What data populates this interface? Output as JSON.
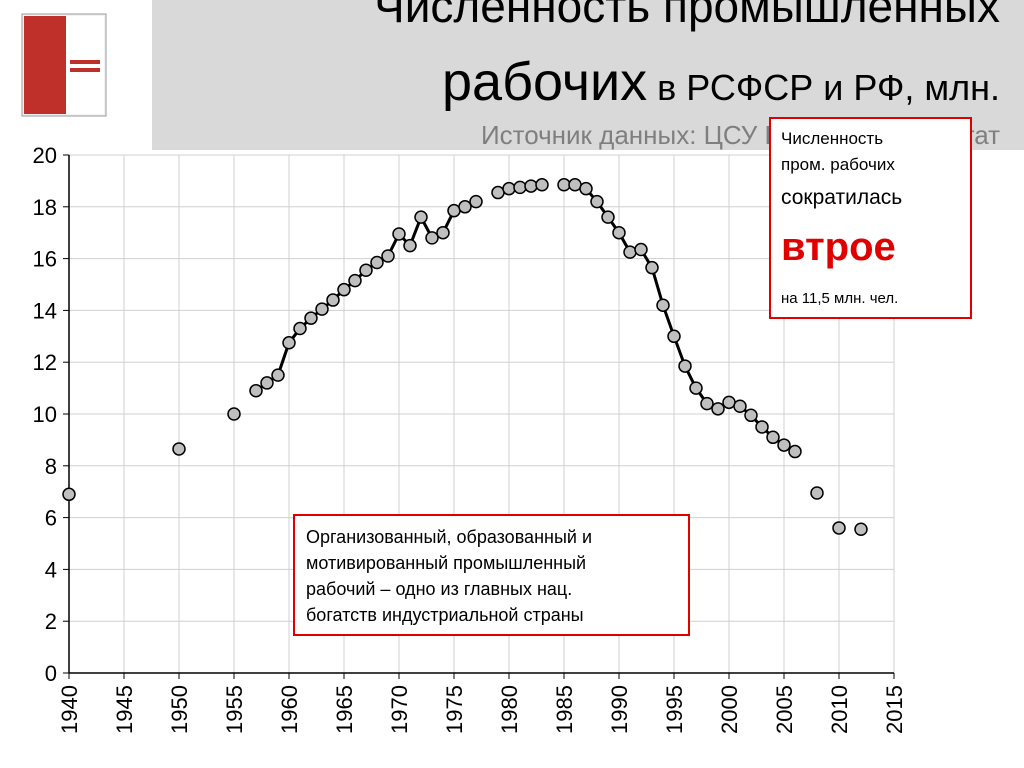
{
  "header": {
    "title_line1": "Численность промышленных",
    "title_big": "рабочих",
    "title_rest": " в РСФСР и РФ, млн.",
    "source": "Источник данных: ЦСУ РСФСР, Госкомстат"
  },
  "chart_data": {
    "type": "line",
    "x": [
      1940,
      1945,
      1950,
      1952,
      1955,
      1956,
      1957,
      1958,
      1959,
      1960,
      1961,
      1962,
      1963,
      1964,
      1965,
      1966,
      1967,
      1968,
      1969,
      1970,
      1971,
      1972,
      1973,
      1974,
      1975,
      1976,
      1977,
      1978,
      1979,
      1980,
      1981,
      1982,
      1983,
      1984,
      1985,
      1986,
      1987,
      1988,
      1989,
      1990,
      1991,
      1992,
      1993,
      1994,
      1995,
      1996,
      1997,
      1998,
      1999,
      2000,
      2001,
      2002,
      2003,
      2004,
      2005,
      2006,
      2007,
      2008,
      2009,
      2010,
      2011,
      2012
    ],
    "series": [
      {
        "name": "Численность промышленных рабочих",
        "color": "#000000",
        "marker_color": "#bfbfbf",
        "values": [
          6.9,
          null,
          8.65,
          null,
          10.0,
          null,
          10.9,
          11.2,
          11.5,
          12.75,
          13.3,
          13.7,
          14.05,
          14.4,
          14.8,
          15.15,
          15.55,
          15.85,
          16.1,
          16.95,
          16.5,
          17.6,
          16.8,
          17.0,
          17.85,
          18.0,
          18.2,
          null,
          18.55,
          18.7,
          18.75,
          18.8,
          18.85,
          null,
          18.85,
          18.85,
          18.7,
          18.2,
          17.6,
          17.0,
          16.25,
          16.35,
          15.65,
          14.2,
          13.0,
          11.85,
          11.0,
          10.4,
          10.2,
          10.45,
          10.3,
          9.95,
          9.5,
          9.1,
          8.8,
          8.55,
          null,
          6.95,
          null,
          5.6,
          null,
          5.55
        ]
      }
    ],
    "xlim": [
      1940,
      2015
    ],
    "xticks": [
      1940,
      1945,
      1950,
      1955,
      1960,
      1965,
      1970,
      1975,
      1980,
      1985,
      1990,
      1995,
      2000,
      2005,
      2010,
      2015
    ],
    "ylim": [
      0,
      20
    ],
    "yticks": [
      0,
      2,
      4,
      6,
      8,
      10,
      12,
      14,
      16,
      18,
      20
    ],
    "grid": true
  },
  "annotations": {
    "decline": {
      "line1": "Численность",
      "line2": "пром. рабочих",
      "line3": "сократилась",
      "emphasis": "втрое",
      "detail": "на 11,5 млн. чел."
    },
    "note": [
      "Организованный, образованный и",
      "мотивированный промышленный",
      "рабочий – одно из главных нац.",
      "богатств индустриальной страны"
    ]
  }
}
